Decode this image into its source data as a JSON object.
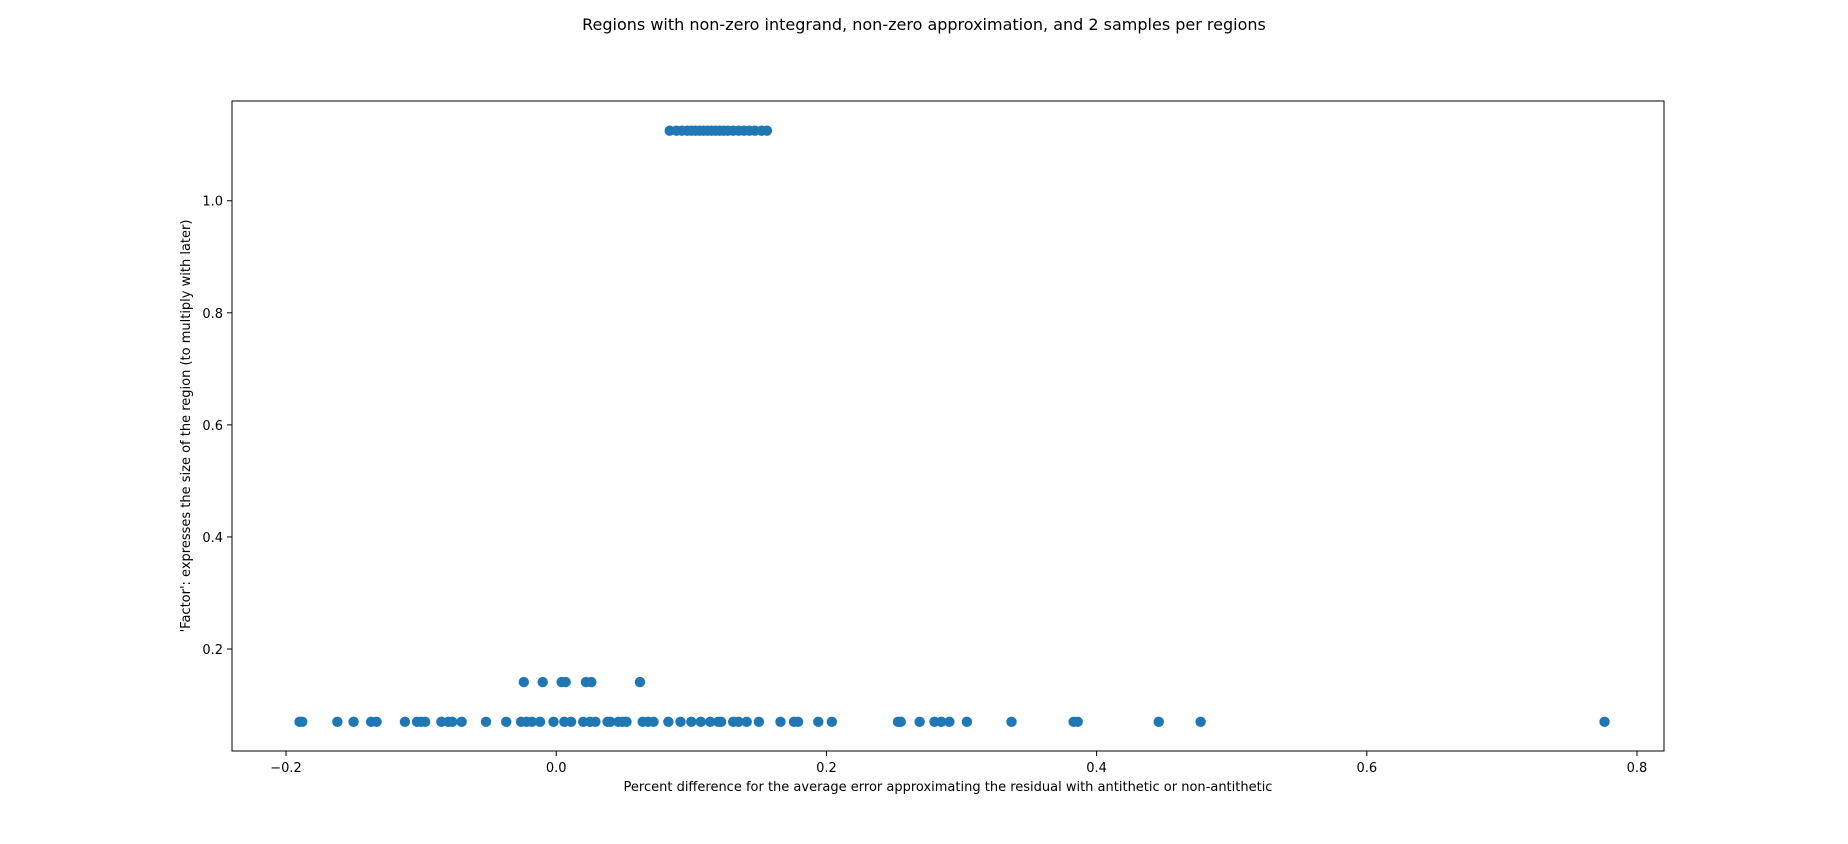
{
  "chart_data": {
    "type": "scatter",
    "title": "Regions with non-zero integrand, non-zero approximation, and 2 samples per regions",
    "xlabel": "Percent difference for the average error approximating the residual with antithetic or non-antithetic",
    "ylabel": "'Factor': expresses the size of the region (to multiply with later)",
    "xlim": [
      -0.24,
      0.82
    ],
    "ylim": [
      0.018,
      1.178
    ],
    "x_ticks": [
      -0.2,
      0.0,
      0.2,
      0.4,
      0.6,
      0.8
    ],
    "x_tick_labels": [
      "−0.2",
      "0.0",
      "0.2",
      "0.4",
      "0.6",
      "0.8"
    ],
    "y_ticks": [
      0.2,
      0.4,
      0.6,
      0.8,
      1.0
    ],
    "y_tick_labels": [
      "0.2",
      "0.4",
      "0.6",
      "0.8",
      "1.0"
    ],
    "grid": false,
    "marker_color": "#1f77b4",
    "series": [
      {
        "points": [
          {
            "x": -0.19,
            "y": 0.07
          },
          {
            "x": -0.188,
            "y": 0.07
          },
          {
            "x": -0.162,
            "y": 0.07
          },
          {
            "x": -0.15,
            "y": 0.07
          },
          {
            "x": -0.137,
            "y": 0.07
          },
          {
            "x": -0.133,
            "y": 0.07
          },
          {
            "x": -0.112,
            "y": 0.07
          },
          {
            "x": -0.103,
            "y": 0.07
          },
          {
            "x": -0.1,
            "y": 0.07
          },
          {
            "x": -0.097,
            "y": 0.07
          },
          {
            "x": -0.085,
            "y": 0.07
          },
          {
            "x": -0.08,
            "y": 0.07
          },
          {
            "x": -0.077,
            "y": 0.07
          },
          {
            "x": -0.07,
            "y": 0.07
          },
          {
            "x": -0.052,
            "y": 0.07
          },
          {
            "x": -0.037,
            "y": 0.07
          },
          {
            "x": -0.026,
            "y": 0.07
          },
          {
            "x": -0.022,
            "y": 0.07
          },
          {
            "x": -0.018,
            "y": 0.07
          },
          {
            "x": -0.012,
            "y": 0.07
          },
          {
            "x": -0.002,
            "y": 0.07
          },
          {
            "x": 0.006,
            "y": 0.07
          },
          {
            "x": 0.011,
            "y": 0.07
          },
          {
            "x": 0.02,
            "y": 0.07
          },
          {
            "x": 0.025,
            "y": 0.07
          },
          {
            "x": 0.029,
            "y": 0.07
          },
          {
            "x": 0.038,
            "y": 0.07
          },
          {
            "x": 0.04,
            "y": 0.07
          },
          {
            "x": 0.046,
            "y": 0.07
          },
          {
            "x": 0.049,
            "y": 0.07
          },
          {
            "x": 0.052,
            "y": 0.07
          },
          {
            "x": 0.064,
            "y": 0.07
          },
          {
            "x": 0.068,
            "y": 0.07
          },
          {
            "x": 0.072,
            "y": 0.07
          },
          {
            "x": 0.083,
            "y": 0.07
          },
          {
            "x": 0.092,
            "y": 0.07
          },
          {
            "x": 0.1,
            "y": 0.07
          },
          {
            "x": 0.107,
            "y": 0.07
          },
          {
            "x": 0.114,
            "y": 0.07
          },
          {
            "x": 0.12,
            "y": 0.07
          },
          {
            "x": 0.122,
            "y": 0.07
          },
          {
            "x": 0.131,
            "y": 0.07
          },
          {
            "x": 0.135,
            "y": 0.07
          },
          {
            "x": 0.141,
            "y": 0.07
          },
          {
            "x": 0.15,
            "y": 0.07
          },
          {
            "x": 0.166,
            "y": 0.07
          },
          {
            "x": 0.176,
            "y": 0.07
          },
          {
            "x": 0.179,
            "y": 0.07
          },
          {
            "x": 0.194,
            "y": 0.07
          },
          {
            "x": 0.204,
            "y": 0.07
          },
          {
            "x": 0.253,
            "y": 0.07
          },
          {
            "x": 0.255,
            "y": 0.07
          },
          {
            "x": 0.269,
            "y": 0.07
          },
          {
            "x": 0.28,
            "y": 0.07
          },
          {
            "x": 0.285,
            "y": 0.07
          },
          {
            "x": 0.291,
            "y": 0.07
          },
          {
            "x": 0.304,
            "y": 0.07
          },
          {
            "x": 0.337,
            "y": 0.07
          },
          {
            "x": 0.383,
            "y": 0.07
          },
          {
            "x": 0.386,
            "y": 0.07
          },
          {
            "x": 0.446,
            "y": 0.07
          },
          {
            "x": 0.477,
            "y": 0.07
          },
          {
            "x": 0.776,
            "y": 0.07
          },
          {
            "x": -0.024,
            "y": 0.141
          },
          {
            "x": -0.01,
            "y": 0.141
          },
          {
            "x": 0.004,
            "y": 0.141
          },
          {
            "x": 0.007,
            "y": 0.141
          },
          {
            "x": 0.022,
            "y": 0.141
          },
          {
            "x": 0.026,
            "y": 0.141
          },
          {
            "x": 0.062,
            "y": 0.141
          },
          {
            "x": 0.084,
            "y": 1.125
          },
          {
            "x": 0.089,
            "y": 1.125
          },
          {
            "x": 0.093,
            "y": 1.125
          },
          {
            "x": 0.097,
            "y": 1.125
          },
          {
            "x": 0.1,
            "y": 1.125
          },
          {
            "x": 0.103,
            "y": 1.125
          },
          {
            "x": 0.106,
            "y": 1.125
          },
          {
            "x": 0.109,
            "y": 1.125
          },
          {
            "x": 0.112,
            "y": 1.125
          },
          {
            "x": 0.115,
            "y": 1.125
          },
          {
            "x": 0.118,
            "y": 1.125
          },
          {
            "x": 0.121,
            "y": 1.125
          },
          {
            "x": 0.124,
            "y": 1.125
          },
          {
            "x": 0.127,
            "y": 1.125
          },
          {
            "x": 0.131,
            "y": 1.125
          },
          {
            "x": 0.135,
            "y": 1.125
          },
          {
            "x": 0.139,
            "y": 1.125
          },
          {
            "x": 0.143,
            "y": 1.125
          },
          {
            "x": 0.147,
            "y": 1.125
          },
          {
            "x": 0.152,
            "y": 1.125
          },
          {
            "x": 0.156,
            "y": 1.125
          }
        ]
      }
    ]
  }
}
